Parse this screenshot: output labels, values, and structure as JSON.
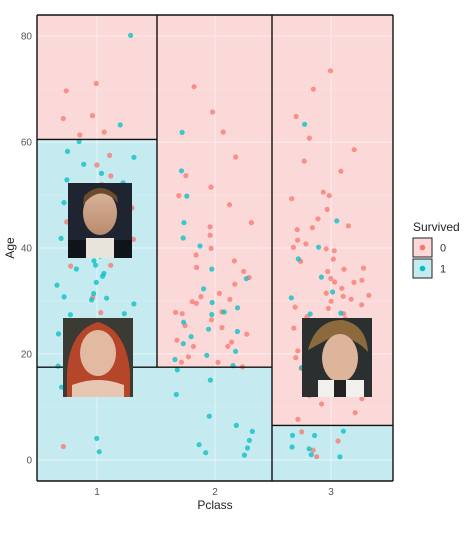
{
  "chart_data": {
    "type": "scatter",
    "xlabel": "Pclass",
    "ylabel": "Age",
    "x_categories": [
      "1",
      "2",
      "3"
    ],
    "y_ticks": [
      0,
      20,
      40,
      60,
      80
    ],
    "ylim": [
      -4,
      84
    ],
    "grid": true,
    "legend": {
      "title": "Survived",
      "position": "right",
      "entries": [
        {
          "label": "0",
          "color": "#F8766D"
        },
        {
          "label": "1",
          "color": "#00BFC4"
        }
      ]
    },
    "regions": [
      {
        "class": "1",
        "age_min": 60.5,
        "age_max": 84,
        "survived": "0"
      },
      {
        "class": "1",
        "age_min": 17.5,
        "age_max": 60.5,
        "survived": "1"
      },
      {
        "class": "2",
        "age_min": 17.5,
        "age_max": 84,
        "survived": "0"
      },
      {
        "class": "1-2",
        "age_min": -4,
        "age_max": 17.5,
        "survived": "1"
      },
      {
        "class": "3",
        "age_min": 6.5,
        "age_max": 84,
        "survived": "0"
      },
      {
        "class": "3",
        "age_min": -4,
        "age_max": 6.5,
        "survived": "1"
      }
    ],
    "series": [
      {
        "name": "0",
        "points": [
          [
            1,
            71
          ],
          [
            1,
            70
          ],
          [
            1,
            65
          ],
          [
            1,
            64
          ],
          [
            1,
            62
          ],
          [
            1,
            61
          ],
          [
            1,
            58
          ],
          [
            1,
            56
          ],
          [
            1,
            54
          ],
          [
            1,
            52
          ],
          [
            1,
            50
          ],
          [
            1,
            47
          ],
          [
            1,
            45
          ],
          [
            1,
            42
          ],
          [
            1,
            40
          ],
          [
            1,
            37
          ],
          [
            1,
            36
          ],
          [
            1,
            31
          ],
          [
            1,
            28
          ],
          [
            1,
            24
          ],
          [
            1,
            19
          ],
          [
            1,
            2
          ],
          [
            2,
            70
          ],
          [
            2,
            66
          ],
          [
            2,
            62
          ],
          [
            2,
            57
          ],
          [
            2,
            54
          ],
          [
            2,
            52
          ],
          [
            2,
            50
          ],
          [
            2,
            48
          ],
          [
            2,
            45
          ],
          [
            2,
            44
          ],
          [
            2,
            42
          ],
          [
            2,
            40
          ],
          [
            2,
            39
          ],
          [
            2,
            38
          ],
          [
            2,
            36
          ],
          [
            2,
            35
          ],
          [
            2,
            34
          ],
          [
            2,
            33
          ],
          [
            2,
            32
          ],
          [
            2,
            31
          ],
          [
            2,
            30
          ],
          [
            2,
            30
          ],
          [
            2,
            29
          ],
          [
            2,
            28
          ],
          [
            2,
            28
          ],
          [
            2,
            27
          ],
          [
            2,
            26
          ],
          [
            2,
            25
          ],
          [
            2,
            25
          ],
          [
            2,
            24
          ],
          [
            2,
            23
          ],
          [
            2,
            22
          ],
          [
            2,
            21
          ],
          [
            2,
            21
          ],
          [
            2,
            20
          ],
          [
            2,
            19
          ],
          [
            2,
            18
          ],
          [
            2,
            18
          ],
          [
            3,
            74
          ],
          [
            3,
            70
          ],
          [
            3,
            65
          ],
          [
            3,
            61
          ],
          [
            3,
            59
          ],
          [
            3,
            57
          ],
          [
            3,
            55
          ],
          [
            3,
            51
          ],
          [
            3,
            50
          ],
          [
            3,
            49
          ],
          [
            3,
            47
          ],
          [
            3,
            45
          ],
          [
            3,
            44
          ],
          [
            3,
            44
          ],
          [
            3,
            43
          ],
          [
            3,
            42
          ],
          [
            3,
            41
          ],
          [
            3,
            40
          ],
          [
            3,
            40
          ],
          [
            3,
            39
          ],
          [
            3,
            38
          ],
          [
            3,
            37
          ],
          [
            3,
            36
          ],
          [
            3,
            36
          ],
          [
            3,
            35
          ],
          [
            3,
            34
          ],
          [
            3,
            34
          ],
          [
            3,
            33
          ],
          [
            3,
            33
          ],
          [
            3,
            32
          ],
          [
            3,
            32
          ],
          [
            3,
            31
          ],
          [
            3,
            31
          ],
          [
            3,
            30
          ],
          [
            3,
            30
          ],
          [
            3,
            29
          ],
          [
            3,
            29
          ],
          [
            3,
            28
          ],
          [
            3,
            28
          ],
          [
            3,
            27
          ],
          [
            3,
            27
          ],
          [
            3,
            26
          ],
          [
            3,
            26
          ],
          [
            3,
            25
          ],
          [
            3,
            25
          ],
          [
            3,
            24
          ],
          [
            3,
            24
          ],
          [
            3,
            23
          ],
          [
            3,
            23
          ],
          [
            3,
            22
          ],
          [
            3,
            22
          ],
          [
            3,
            21
          ],
          [
            3,
            21
          ],
          [
            3,
            20
          ],
          [
            3,
            20
          ],
          [
            3,
            19
          ],
          [
            3,
            19
          ],
          [
            3,
            18
          ],
          [
            3,
            18
          ],
          [
            3,
            17
          ],
          [
            3,
            17
          ],
          [
            3,
            16
          ],
          [
            3,
            15
          ],
          [
            3,
            14
          ],
          [
            3,
            13
          ],
          [
            3,
            12
          ],
          [
            3,
            11
          ],
          [
            3,
            10
          ],
          [
            3,
            9
          ],
          [
            3,
            8
          ],
          [
            3,
            5
          ],
          [
            3,
            3
          ],
          [
            3,
            2
          ],
          [
            3,
            1
          ]
        ]
      },
      {
        "name": "1",
        "points": [
          [
            1,
            80
          ],
          [
            1,
            63
          ],
          [
            1,
            60
          ],
          [
            1,
            58
          ],
          [
            1,
            57
          ],
          [
            1,
            56
          ],
          [
            1,
            54
          ],
          [
            1,
            53
          ],
          [
            1,
            52
          ],
          [
            1,
            51
          ],
          [
            1,
            50
          ],
          [
            1,
            49
          ],
          [
            1,
            48
          ],
          [
            1,
            47
          ],
          [
            1,
            46
          ],
          [
            1,
            45
          ],
          [
            1,
            44
          ],
          [
            1,
            43
          ],
          [
            1,
            42
          ],
          [
            1,
            41
          ],
          [
            1,
            40
          ],
          [
            1,
            39
          ],
          [
            1,
            38
          ],
          [
            1,
            37
          ],
          [
            1,
            36
          ],
          [
            1,
            35
          ],
          [
            1,
            35
          ],
          [
            1,
            34
          ],
          [
            1,
            33
          ],
          [
            1,
            32
          ],
          [
            1,
            31
          ],
          [
            1,
            31
          ],
          [
            1,
            30
          ],
          [
            1,
            29
          ],
          [
            1,
            28
          ],
          [
            1,
            27
          ],
          [
            1,
            26
          ],
          [
            1,
            25
          ],
          [
            1,
            24
          ],
          [
            1,
            23
          ],
          [
            1,
            22
          ],
          [
            1,
            21
          ],
          [
            1,
            20
          ],
          [
            1,
            19
          ],
          [
            1,
            18
          ],
          [
            1,
            16
          ],
          [
            1,
            14
          ],
          [
            1,
            4
          ],
          [
            1,
            1
          ],
          [
            2,
            62
          ],
          [
            2,
            55
          ],
          [
            2,
            50
          ],
          [
            2,
            45
          ],
          [
            2,
            42
          ],
          [
            2,
            40
          ],
          [
            2,
            36
          ],
          [
            2,
            34
          ],
          [
            2,
            32
          ],
          [
            2,
            30
          ],
          [
            2,
            29
          ],
          [
            2,
            28
          ],
          [
            2,
            27
          ],
          [
            2,
            26
          ],
          [
            2,
            25
          ],
          [
            2,
            24
          ],
          [
            2,
            23
          ],
          [
            2,
            22
          ],
          [
            2,
            21
          ],
          [
            2,
            20
          ],
          [
            2,
            19
          ],
          [
            2,
            18
          ],
          [
            2,
            17
          ],
          [
            2,
            15
          ],
          [
            2,
            12
          ],
          [
            2,
            8
          ],
          [
            2,
            7
          ],
          [
            2,
            5
          ],
          [
            2,
            4
          ],
          [
            2,
            3
          ],
          [
            2,
            2
          ],
          [
            2,
            1
          ],
          [
            2,
            1
          ],
          [
            3,
            63
          ],
          [
            3,
            45
          ],
          [
            3,
            40
          ],
          [
            3,
            38
          ],
          [
            3,
            35
          ],
          [
            3,
            32
          ],
          [
            3,
            30
          ],
          [
            3,
            28
          ],
          [
            3,
            27
          ],
          [
            3,
            25
          ],
          [
            3,
            22
          ],
          [
            3,
            20
          ],
          [
            3,
            18
          ],
          [
            3,
            15
          ],
          [
            3,
            6
          ],
          [
            3,
            5
          ],
          [
            3,
            4
          ],
          [
            3,
            3
          ],
          [
            3,
            2
          ],
          [
            3,
            1
          ],
          [
            3,
            1
          ]
        ]
      }
    ]
  }
}
